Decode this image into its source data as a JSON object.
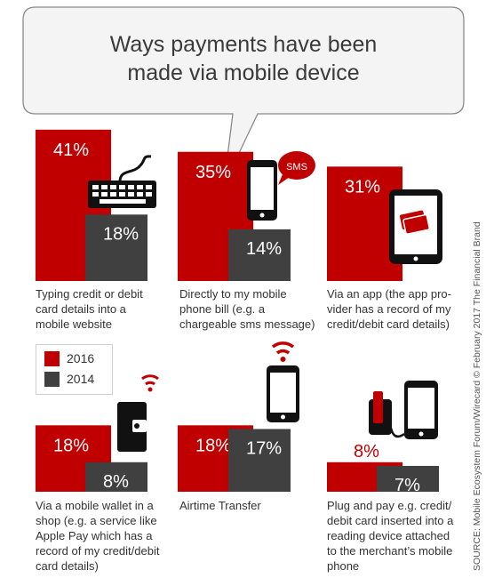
{
  "title": [
    "Ways payments have been",
    "made via mobile device"
  ],
  "colors": {
    "y2016": "#c00000",
    "y2014": "#404040"
  },
  "legend": [
    {
      "label": "2016",
      "color": "#c00000"
    },
    {
      "label": "2014",
      "color": "#404040"
    }
  ],
  "source": "SOURCE: Mobile Ecosystem Forum/Wirecard © February 2017 The Financial Brand",
  "chart_data": [
    {
      "type": "bar",
      "category": "Typing credit or debit card details into a mobile website",
      "series": [
        {
          "name": "2016",
          "value": 41
        },
        {
          "name": "2014",
          "value": 18
        }
      ],
      "icon": "keyboard-icon"
    },
    {
      "type": "bar",
      "category": "Directly to my mobile phone bill (e.g. a chargeable sms message)",
      "series": [
        {
          "name": "2016",
          "value": 35
        },
        {
          "name": "2014",
          "value": 14
        }
      ],
      "icon": "phone-sms-icon",
      "icon_text": "SMS"
    },
    {
      "type": "bar",
      "category": "Via an app (the app provider has a record of my credit/debit card details)",
      "series": [
        {
          "name": "2016",
          "value": 31
        }
      ],
      "icon": "tablet-card-icon"
    },
    {
      "type": "bar",
      "category": "Via a mobile wallet in a shop (e.g. a service like Apple Pay which has a record of my credit/debit card details)",
      "series": [
        {
          "name": "2016",
          "value": 18
        },
        {
          "name": "2014",
          "value": 8
        }
      ],
      "icon": "wallet-wifi-icon"
    },
    {
      "type": "bar",
      "category": "Airtime Transfer",
      "series": [
        {
          "name": "2016",
          "value": 18
        },
        {
          "name": "2014",
          "value": 17
        }
      ],
      "icon": "phone-wifi-icon"
    },
    {
      "type": "bar",
      "category": "Plug and pay e.g. credit/ debit card inserted into a reading device attached to the merchant’s mobile phone",
      "series": [
        {
          "name": "2016",
          "value": 8
        },
        {
          "name": "2014",
          "value": 7
        }
      ],
      "icon": "card-reader-phone-icon"
    }
  ],
  "captions": [
    [
      "Typing credit or debit",
      "card details into a",
      "mobile website"
    ],
    [
      "Directly to my mobile",
      "phone bill (e.g. a",
      "chargeable sms message)"
    ],
    [
      "Via an app (the app pro-",
      "vider has a record of my",
      "credit/debit card details)"
    ],
    [
      "Via a mobile wallet in a",
      "shop (e.g. a service like",
      "Apple Pay which has a",
      "record of my credit/debit",
      "card details)"
    ],
    [
      "Airtime Transfer"
    ],
    [
      "Plug and pay e.g. credit/",
      "debit card inserted into a",
      "reading device attached",
      "to the merchant’s mobile",
      "phone"
    ]
  ]
}
